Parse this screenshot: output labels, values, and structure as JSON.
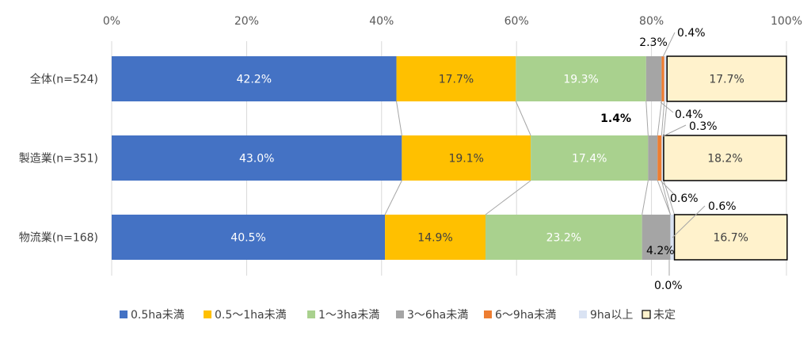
{
  "chart_data": {
    "type": "bar",
    "orientation": "horizontal",
    "stacked": true,
    "normalized": true,
    "categories": [
      "全体(n=524)",
      "製造業(n=351)",
      "物流業(n=168)"
    ],
    "xlim": [
      0,
      100
    ],
    "x_ticks": [
      "0%",
      "20%",
      "40%",
      "60%",
      "80%",
      "100%"
    ],
    "grid": true,
    "legend_position": "bottom",
    "series": [
      {
        "name": "0.5ha未満",
        "color": "#4472C4",
        "values": [
          42.2,
          43.0,
          40.5
        ],
        "labels": [
          "42.2%",
          "43.0%",
          "40.5%"
        ]
      },
      {
        "name": "0.5～1ha未満",
        "color": "#FFC000",
        "values": [
          17.7,
          19.1,
          14.9
        ],
        "labels": [
          "17.7%",
          "19.1%",
          "14.9%"
        ]
      },
      {
        "name": "1～3ha未満",
        "color": "#A9D18E",
        "values": [
          19.3,
          17.4,
          23.2
        ],
        "labels": [
          "19.3%",
          "17.4%",
          "23.2%"
        ]
      },
      {
        "name": "3～6ha未満",
        "color": "#A5A5A5",
        "values": [
          2.3,
          1.4,
          4.2
        ],
        "labels": [
          "2.3%",
          "1.4%",
          "4.2%"
        ]
      },
      {
        "name": "6～9ha未満",
        "color": "#ED7D31",
        "values": [
          0.4,
          0.6,
          0.0
        ],
        "labels": [
          "0.4%",
          "0.6%",
          "0.0%"
        ]
      },
      {
        "name": "9ha以上",
        "color": "#DAE3F3",
        "values": [
          0.4,
          0.3,
          0.6
        ],
        "labels": [
          "0.4%",
          "0.3%",
          "0.6%"
        ]
      },
      {
        "name": "未定",
        "color": "#FFF2CC",
        "values": [
          17.7,
          18.2,
          16.7
        ],
        "labels": [
          "17.7%",
          "18.2%",
          "16.7%"
        ]
      }
    ]
  }
}
